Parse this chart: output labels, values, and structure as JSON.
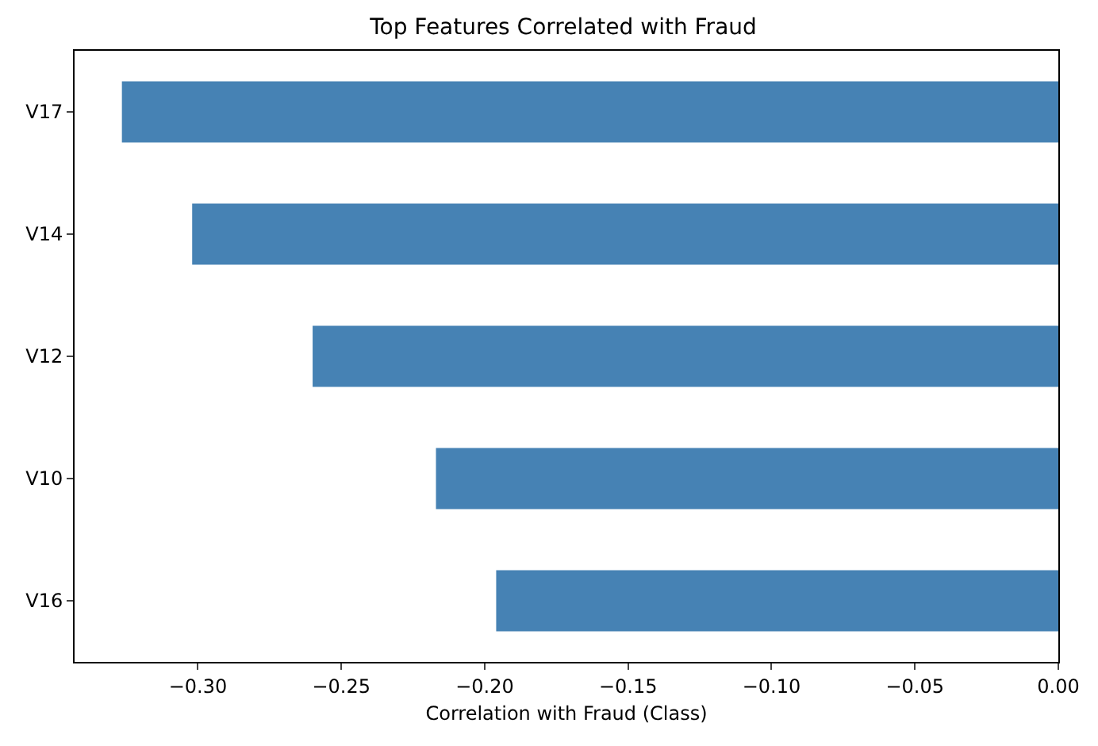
{
  "chart_data": {
    "type": "bar",
    "orientation": "horizontal",
    "title": "Top Features Correlated with Fraud",
    "xlabel": "Correlation with Fraud (Class)",
    "categories": [
      "V17",
      "V14",
      "V12",
      "V10",
      "V16"
    ],
    "values": [
      -0.3265,
      -0.302,
      -0.26,
      -0.217,
      -0.196
    ],
    "color": "#4682b4",
    "xlim": [
      -0.343,
      0
    ],
    "xticks": [
      {
        "value": -0.3,
        "label": "−0.30"
      },
      {
        "value": -0.25,
        "label": "−0.25"
      },
      {
        "value": -0.2,
        "label": "−0.20"
      },
      {
        "value": -0.15,
        "label": "−0.15"
      },
      {
        "value": -0.1,
        "label": "−0.10"
      },
      {
        "value": -0.05,
        "label": "−0.05"
      },
      {
        "value": 0,
        "label": "0.00"
      }
    ],
    "grid": false,
    "legend": false
  }
}
